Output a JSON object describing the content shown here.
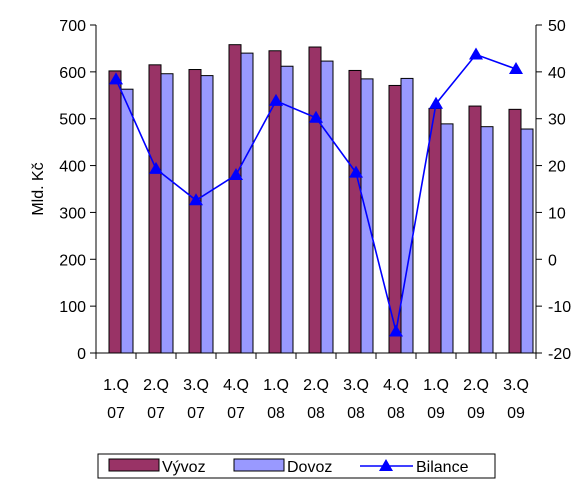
{
  "chart_data": {
    "type": "bar",
    "categories": [
      [
        "1.Q",
        "07"
      ],
      [
        "2.Q",
        "07"
      ],
      [
        "3.Q",
        "07"
      ],
      [
        "4.Q",
        "07"
      ],
      [
        "1.Q",
        "08"
      ],
      [
        "2.Q",
        "08"
      ],
      [
        "3.Q",
        "08"
      ],
      [
        "4.Q",
        "08"
      ],
      [
        "1.Q",
        "09"
      ],
      [
        "2.Q",
        "09"
      ],
      [
        "3.Q",
        "09"
      ]
    ],
    "ylabel": "Mld. Kč",
    "ylim": [
      0,
      700
    ],
    "y_ticks": [
      0,
      100,
      200,
      300,
      400,
      500,
      600,
      700
    ],
    "y2lim": [
      -20,
      50
    ],
    "y2_ticks": [
      -20,
      -10,
      0,
      10,
      20,
      30,
      40,
      50
    ],
    "grid": false,
    "legend_position": "bottom",
    "series": [
      {
        "name": "Vývoz",
        "type": "bar",
        "axis": "left",
        "color": "#993366",
        "values": [
          602,
          615,
          605,
          658,
          645,
          653,
          603,
          571,
          522,
          527,
          520
        ]
      },
      {
        "name": "Dovoz",
        "type": "bar",
        "axis": "left",
        "color": "#9999ff",
        "values": [
          563,
          596,
          592,
          640,
          612,
          623,
          585,
          586,
          489,
          483,
          478
        ]
      },
      {
        "name": "Bilance",
        "type": "line",
        "axis": "right",
        "color": "#0000ff",
        "marker": "triangle",
        "values": [
          38.4,
          19.3,
          12.6,
          18.0,
          33.8,
          30.2,
          18.5,
          -15.4,
          33.2,
          43.7,
          40.6
        ]
      }
    ]
  }
}
